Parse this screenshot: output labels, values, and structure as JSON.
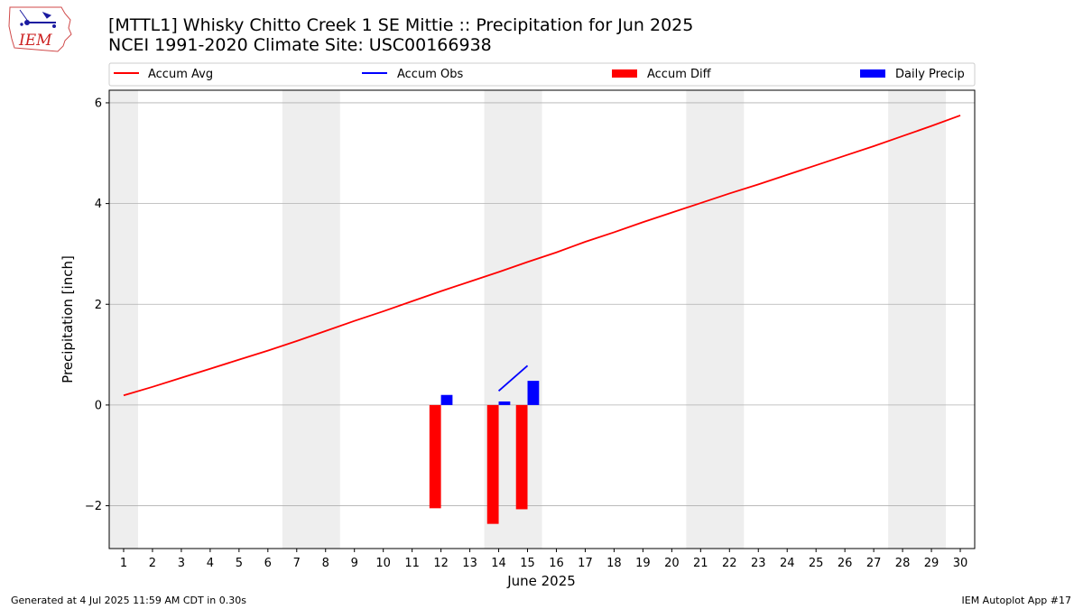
{
  "header": {
    "title_line1": "[MTTL1] Whisky Chitto Creek 1 SE Mittie :: Precipitation for Jun 2025",
    "title_line2": "NCEI 1991-2020 Climate Site: USC00166938",
    "logo_text": "IEM"
  },
  "footer": {
    "generated": "Generated at 4 Jul 2025 11:59 AM CDT in 0.30s",
    "app": "IEM Autoplot App #17"
  },
  "colors": {
    "accum_avg": "#ff0000",
    "accum_obs": "#0000ff",
    "accum_diff": "#ff0000",
    "daily_precip": "#0000ff",
    "weekend_shade": "#eeeeee",
    "grid": "#b0b0b0"
  },
  "chart_data": {
    "type": "bar",
    "title": "[MTTL1] Whisky Chitto Creek 1 SE Mittie :: Precipitation for Jun 2025",
    "subtitle": "NCEI 1991-2020 Climate Site: USC00166938",
    "xlabel": "June 2025",
    "ylabel": "Precipitation [inch]",
    "xlim": [
      0.5,
      30.5
    ],
    "ylim": [
      -2.85,
      6.25
    ],
    "x_ticks": [
      1,
      2,
      3,
      4,
      5,
      6,
      7,
      8,
      9,
      10,
      11,
      12,
      13,
      14,
      15,
      16,
      17,
      18,
      19,
      20,
      21,
      22,
      23,
      24,
      25,
      26,
      27,
      28,
      29,
      30
    ],
    "y_ticks": [
      -2,
      0,
      2,
      4,
      6
    ],
    "grid": "y",
    "legend_position": "top",
    "legend": [
      "Accum Avg",
      "Accum Obs",
      "Accum Diff",
      "Daily Precip"
    ],
    "weekend_ranges": [
      [
        0.5,
        1.5
      ],
      [
        6.5,
        8.5
      ],
      [
        13.5,
        15.5
      ],
      [
        20.5,
        22.5
      ],
      [
        27.5,
        29.5
      ]
    ],
    "accum_avg": {
      "name": "Accum Avg",
      "x": [
        1,
        2,
        3,
        4,
        5,
        6,
        7,
        8,
        9,
        10,
        11,
        12,
        13,
        14,
        15,
        16,
        17,
        18,
        19,
        20,
        21,
        22,
        23,
        24,
        25,
        26,
        27,
        28,
        29,
        30
      ],
      "values": [
        0.19,
        0.36,
        0.54,
        0.72,
        0.9,
        1.08,
        1.27,
        1.47,
        1.67,
        1.86,
        2.06,
        2.26,
        2.45,
        2.64,
        2.84,
        3.03,
        3.24,
        3.43,
        3.63,
        3.82,
        4.01,
        4.2,
        4.38,
        4.57,
        4.76,
        4.95,
        5.14,
        5.34,
        5.54,
        5.75
      ]
    },
    "accum_obs": {
      "name": "Accum Obs",
      "x": [
        14,
        15
      ],
      "values": [
        0.28,
        0.78
      ]
    },
    "accum_diff": {
      "name": "Accum Diff",
      "x": [
        12,
        14,
        15
      ],
      "values": [
        -2.05,
        -2.36,
        -2.07
      ]
    },
    "daily_precip": {
      "name": "Daily Precip",
      "x": [
        12,
        14,
        15
      ],
      "values": [
        0.2,
        0.07,
        0.48
      ]
    }
  }
}
